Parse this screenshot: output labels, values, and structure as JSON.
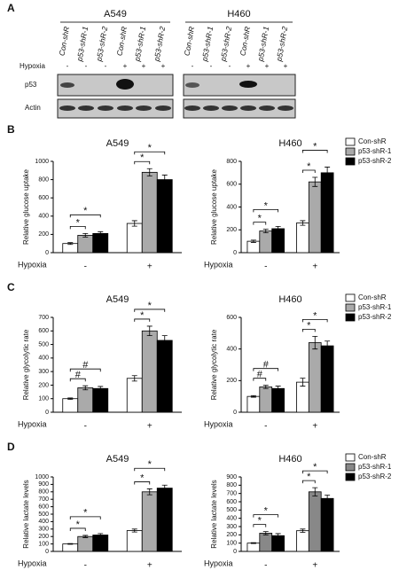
{
  "panel_a": {
    "label": "A",
    "row_label": "Hypoxia",
    "blots": [
      "p53",
      "Actin"
    ],
    "hypoxia": [
      "-",
      "-",
      "-",
      "+",
      "+",
      "+"
    ],
    "groups": [
      {
        "name": "A549",
        "lanes": [
          "Con-shR",
          "p53-shR-1",
          "p53-shR-2",
          "Con-shR",
          "p53-shR-1",
          "p53-shR-2"
        ]
      },
      {
        "name": "H460",
        "lanes": [
          "Con-shR",
          "p53-shR-1",
          "p53-shR-2",
          "Con-shR",
          "p53-shR-1",
          "p53-shR-2"
        ]
      }
    ]
  },
  "panel_labels": [
    "B",
    "C",
    "D"
  ],
  "chart_data": [
    {
      "type": "bar",
      "title": "A549",
      "ylabel": "Relative glucose uptake",
      "xlabel": "Hypoxia",
      "categories": [
        "-",
        "+"
      ],
      "series": [
        {
          "name": "Con-shR",
          "color": "#ffffff",
          "values": [
            100,
            320
          ],
          "errors": [
            10,
            30
          ]
        },
        {
          "name": "p53-shR-1",
          "color": "#aaaaaa",
          "values": [
            190,
            880
          ],
          "errors": [
            20,
            40
          ]
        },
        {
          "name": "p53-shR-2",
          "color": "#000000",
          "values": [
            210,
            800
          ],
          "errors": [
            20,
            50
          ]
        }
      ],
      "ylim": [
        0,
        1000
      ],
      "yticks": [
        0,
        200,
        400,
        600,
        800,
        1000
      ],
      "brackets": [
        {
          "category": 0,
          "to": 1,
          "label": "*"
        },
        {
          "category": 0,
          "to": 2,
          "label": "*"
        },
        {
          "category": 1,
          "to": 1,
          "label": "*"
        },
        {
          "category": 1,
          "to": 2,
          "label": "*"
        }
      ]
    },
    {
      "type": "bar",
      "title": "H460",
      "ylabel": "Relative glucose uptake",
      "xlabel": "Hypoxia",
      "categories": [
        "-",
        "+"
      ],
      "legend": "right",
      "series": [
        {
          "name": "Con-shR",
          "color": "#ffffff",
          "values": [
            100,
            260
          ],
          "errors": [
            10,
            20
          ]
        },
        {
          "name": "p53-shR-1",
          "color": "#aaaaaa",
          "values": [
            190,
            620
          ],
          "errors": [
            15,
            40
          ]
        },
        {
          "name": "p53-shR-2",
          "color": "#000000",
          "values": [
            210,
            700
          ],
          "errors": [
            20,
            50
          ]
        }
      ],
      "ylim": [
        0,
        800
      ],
      "yticks": [
        0,
        200,
        400,
        600,
        800
      ],
      "brackets": [
        {
          "category": 0,
          "to": 1,
          "label": "*"
        },
        {
          "category": 0,
          "to": 2,
          "label": "*"
        },
        {
          "category": 1,
          "to": 1,
          "label": "*"
        },
        {
          "category": 1,
          "to": 2,
          "label": "*"
        }
      ]
    },
    {
      "type": "bar",
      "title": "A549",
      "ylabel": "Relative glycolytic rate",
      "xlabel": "Hypoxia",
      "categories": [
        "-",
        "+"
      ],
      "series": [
        {
          "name": "Con-shR",
          "color": "#ffffff",
          "values": [
            100,
            250
          ],
          "errors": [
            5,
            20
          ]
        },
        {
          "name": "p53-shR-1",
          "color": "#aaaaaa",
          "values": [
            180,
            600
          ],
          "errors": [
            15,
            35
          ]
        },
        {
          "name": "p53-shR-2",
          "color": "#000000",
          "values": [
            175,
            530
          ],
          "errors": [
            15,
            35
          ]
        }
      ],
      "ylim": [
        0,
        700
      ],
      "yticks": [
        0,
        100,
        200,
        300,
        400,
        500,
        600,
        700
      ],
      "brackets": [
        {
          "category": 0,
          "to": 1,
          "label": "#"
        },
        {
          "category": 0,
          "to": 2,
          "label": "#"
        },
        {
          "category": 1,
          "to": 1,
          "label": "*"
        },
        {
          "category": 1,
          "to": 2,
          "label": "*"
        }
      ]
    },
    {
      "type": "bar",
      "title": "H460",
      "ylabel": "Relative glycolytic rate",
      "xlabel": "Hypoxia",
      "categories": [
        "-",
        "+"
      ],
      "legend": "right",
      "series": [
        {
          "name": "Con-shR",
          "color": "#ffffff",
          "values": [
            100,
            190
          ],
          "errors": [
            5,
            25
          ]
        },
        {
          "name": "p53-shR-1",
          "color": "#aaaaaa",
          "values": [
            160,
            440
          ],
          "errors": [
            10,
            40
          ]
        },
        {
          "name": "p53-shR-2",
          "color": "#000000",
          "values": [
            150,
            420
          ],
          "errors": [
            15,
            30
          ]
        }
      ],
      "ylim": [
        0,
        600
      ],
      "yticks": [
        0,
        200,
        400,
        600
      ],
      "brackets": [
        {
          "category": 0,
          "to": 1,
          "label": "#"
        },
        {
          "category": 0,
          "to": 2,
          "label": "#"
        },
        {
          "category": 1,
          "to": 1,
          "label": "*"
        },
        {
          "category": 1,
          "to": 2,
          "label": "*"
        }
      ]
    },
    {
      "type": "bar",
      "title": "A549",
      "ylabel": "Relative lactate levels",
      "xlabel": "Hypoxia",
      "categories": [
        "-",
        "+"
      ],
      "series": [
        {
          "name": "Con-shR",
          "color": "#ffffff",
          "values": [
            100,
            280
          ],
          "errors": [
            5,
            20
          ]
        },
        {
          "name": "p53-shR-1",
          "color": "#aaaaaa",
          "values": [
            200,
            800
          ],
          "errors": [
            15,
            40
          ]
        },
        {
          "name": "p53-shR-2",
          "color": "#000000",
          "values": [
            220,
            850
          ],
          "errors": [
            20,
            40
          ]
        }
      ],
      "ylim": [
        0,
        1000
      ],
      "yticks": [
        0,
        100,
        200,
        300,
        400,
        500,
        600,
        700,
        800,
        900,
        1000
      ],
      "brackets": [
        {
          "category": 0,
          "to": 1,
          "label": "*"
        },
        {
          "category": 0,
          "to": 2,
          "label": "*"
        },
        {
          "category": 1,
          "to": 1,
          "label": "*"
        },
        {
          "category": 1,
          "to": 2,
          "label": "*"
        }
      ]
    },
    {
      "type": "bar",
      "title": "H460",
      "ylabel": "Relative lactate levels",
      "xlabel": "Hypoxia",
      "categories": [
        "-",
        "+"
      ],
      "legend": "right",
      "series": [
        {
          "name": "Con-shR",
          "color": "#ffffff",
          "values": [
            100,
            250
          ],
          "errors": [
            5,
            20
          ]
        },
        {
          "name": "p53-shR-1",
          "color": "#888888",
          "values": [
            220,
            720
          ],
          "errors": [
            20,
            50
          ]
        },
        {
          "name": "p53-shR-2",
          "color": "#000000",
          "values": [
            190,
            640
          ],
          "errors": [
            25,
            40
          ]
        }
      ],
      "ylim": [
        0,
        900
      ],
      "yticks": [
        0,
        100,
        200,
        300,
        400,
        500,
        600,
        700,
        800,
        900
      ],
      "brackets": [
        {
          "category": 0,
          "to": 1,
          "label": "*"
        },
        {
          "category": 0,
          "to": 2,
          "label": "*"
        },
        {
          "category": 1,
          "to": 1,
          "label": "*"
        },
        {
          "category": 1,
          "to": 2,
          "label": "*"
        }
      ]
    }
  ]
}
